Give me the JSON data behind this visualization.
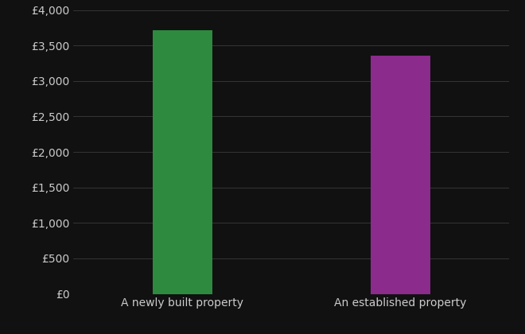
{
  "categories": [
    "A newly built property",
    "An established property"
  ],
  "values": [
    3720,
    3360
  ],
  "bar_colors": [
    "#2d8a3e",
    "#8b2b8b"
  ],
  "background_color": "#111111",
  "text_color": "#cccccc",
  "grid_color": "#444444",
  "ylim": [
    0,
    4000
  ],
  "ytick_interval": 500,
  "bar_width": 0.55,
  "bar_positions": [
    1,
    3
  ],
  "xlim": [
    0,
    4
  ],
  "xlabel": "",
  "ylabel": "",
  "xtick_fontsize": 10,
  "ytick_fontsize": 10
}
